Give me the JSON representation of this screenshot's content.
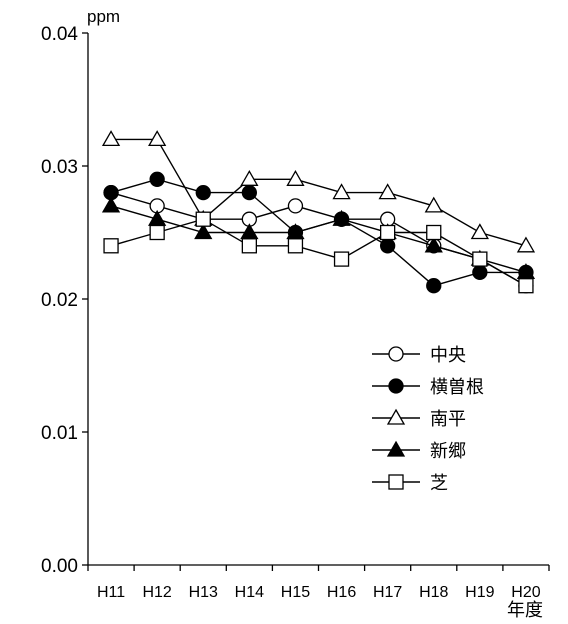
{
  "chart_data": {
    "type": "line",
    "title": "",
    "ylabel": "ppm",
    "xlabel": "年度",
    "ylim": [
      0,
      0.04
    ],
    "yticks": [
      "0.00",
      "0.01",
      "0.02",
      "0.03",
      "0.04"
    ],
    "ytick_values": [
      0,
      0.01,
      0.02,
      0.03,
      0.04
    ],
    "categories": [
      "H11",
      "H12",
      "H13",
      "H14",
      "H15",
      "H16",
      "H17",
      "H18",
      "H19",
      "H20"
    ],
    "grid": false,
    "legend_position": "right-center",
    "series": [
      {
        "name": "中央",
        "marker": "circle-open",
        "values": [
          0.028,
          0.027,
          0.026,
          0.026,
          0.027,
          0.026,
          0.026,
          0.024,
          0.023,
          0.021
        ]
      },
      {
        "name": "横曽根",
        "marker": "circle-filled",
        "values": [
          0.028,
          0.029,
          0.028,
          0.028,
          0.025,
          0.026,
          0.024,
          0.021,
          0.022,
          0.022
        ]
      },
      {
        "name": "南平",
        "marker": "triangle-open",
        "values": [
          0.032,
          0.032,
          0.026,
          0.029,
          0.029,
          0.028,
          0.028,
          0.027,
          0.025,
          0.024
        ]
      },
      {
        "name": "新郷",
        "marker": "triangle-filled",
        "values": [
          0.027,
          0.026,
          0.025,
          0.025,
          0.025,
          0.026,
          0.025,
          0.024,
          0.023,
          0.022
        ]
      },
      {
        "name": "芝",
        "marker": "square-open",
        "values": [
          0.024,
          0.025,
          0.026,
          0.024,
          0.024,
          0.023,
          0.025,
          0.025,
          0.023,
          0.021
        ]
      }
    ]
  }
}
